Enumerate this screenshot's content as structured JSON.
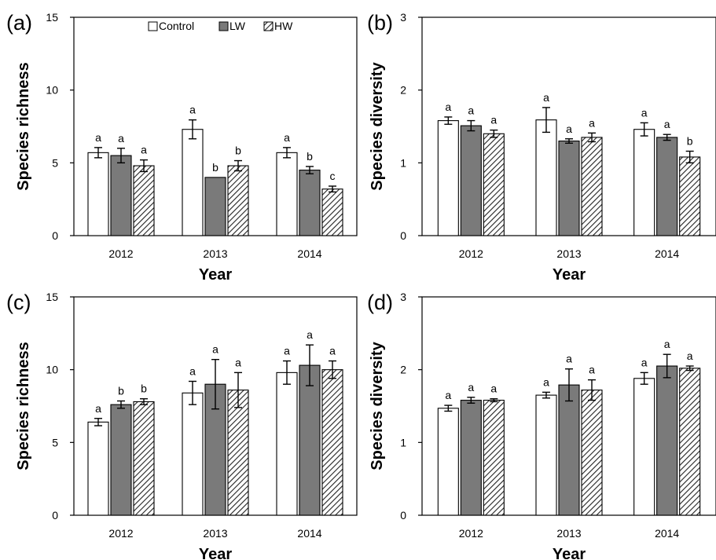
{
  "chart_data": [
    {
      "type": "bar",
      "panel_label": "(a)",
      "categories": [
        "2012",
        "2013",
        "2014"
      ],
      "xlabel": "Year",
      "ylabel": "Species richness",
      "ylim": [
        0,
        15
      ],
      "yticks": [
        "0",
        "5",
        "10",
        "15"
      ],
      "legend": {
        "placement": "top",
        "entries": [
          "Control",
          "LW",
          "HW"
        ]
      },
      "series": [
        {
          "name": "Control",
          "values": [
            5.7,
            7.3,
            5.7
          ],
          "errors": [
            0.35,
            0.65,
            0.35
          ],
          "labels": [
            "a",
            "a",
            "a"
          ]
        },
        {
          "name": "LW",
          "values": [
            5.5,
            4.0,
            4.5
          ],
          "errors": [
            0.5,
            0.0,
            0.25
          ],
          "labels": [
            "a",
            "b",
            "b"
          ]
        },
        {
          "name": "HW",
          "values": [
            4.8,
            4.8,
            3.2
          ],
          "errors": [
            0.4,
            0.35,
            0.2
          ],
          "labels": [
            "a",
            "b",
            "c"
          ]
        }
      ]
    },
    {
      "type": "bar",
      "panel_label": "(b)",
      "categories": [
        "2012",
        "2013",
        "2014"
      ],
      "xlabel": "Year",
      "ylabel": "Species diversity",
      "ylim": [
        0,
        3
      ],
      "yticks": [
        "0",
        "1",
        "2",
        "3"
      ],
      "series": [
        {
          "name": "Control",
          "values": [
            1.58,
            1.59,
            1.46
          ],
          "errors": [
            0.05,
            0.17,
            0.09
          ],
          "labels": [
            "a",
            "a",
            "a"
          ]
        },
        {
          "name": "LW",
          "values": [
            1.51,
            1.3,
            1.35
          ],
          "errors": [
            0.07,
            0.03,
            0.04
          ],
          "labels": [
            "a",
            "a",
            "a"
          ]
        },
        {
          "name": "HW",
          "values": [
            1.4,
            1.35,
            1.08
          ],
          "errors": [
            0.05,
            0.06,
            0.08
          ],
          "labels": [
            "a",
            "a",
            "b"
          ]
        }
      ]
    },
    {
      "type": "bar",
      "panel_label": "(c)",
      "categories": [
        "2012",
        "2013",
        "2014"
      ],
      "xlabel": "Year",
      "ylabel": "Species richness",
      "ylim": [
        0,
        15
      ],
      "yticks": [
        "0",
        "5",
        "10",
        "15"
      ],
      "series": [
        {
          "name": "Control",
          "values": [
            6.4,
            8.4,
            9.8
          ],
          "errors": [
            0.25,
            0.8,
            0.8
          ],
          "labels": [
            "a",
            "a",
            "a"
          ]
        },
        {
          "name": "LW",
          "values": [
            7.6,
            9.0,
            10.3
          ],
          "errors": [
            0.25,
            1.7,
            1.4
          ],
          "labels": [
            "b",
            "a",
            "a"
          ]
        },
        {
          "name": "HW",
          "values": [
            7.8,
            8.6,
            10.0
          ],
          "errors": [
            0.2,
            1.2,
            0.6
          ],
          "labels": [
            "b",
            "a",
            "a"
          ]
        }
      ]
    },
    {
      "type": "bar",
      "panel_label": "(d)",
      "categories": [
        "2012",
        "2013",
        "2014"
      ],
      "xlabel": "Year",
      "ylabel": "Species diversity",
      "ylim": [
        0,
        3
      ],
      "yticks": [
        "0",
        "1",
        "2",
        "3"
      ],
      "series": [
        {
          "name": "Control",
          "values": [
            1.47,
            1.65,
            1.88
          ],
          "errors": [
            0.04,
            0.04,
            0.08
          ],
          "labels": [
            "a",
            "a",
            "a"
          ]
        },
        {
          "name": "LW",
          "values": [
            1.58,
            1.79,
            2.05
          ],
          "errors": [
            0.04,
            0.22,
            0.16
          ],
          "labels": [
            "a",
            "a",
            "a"
          ]
        },
        {
          "name": "HW",
          "values": [
            1.58,
            1.72,
            2.02
          ],
          "errors": [
            0.02,
            0.14,
            0.03
          ],
          "labels": [
            "a",
            "a",
            "a"
          ]
        }
      ]
    }
  ],
  "colors": {
    "Control": "#ffffff",
    "LW": "#7a7a7a",
    "HW": "hatched"
  }
}
